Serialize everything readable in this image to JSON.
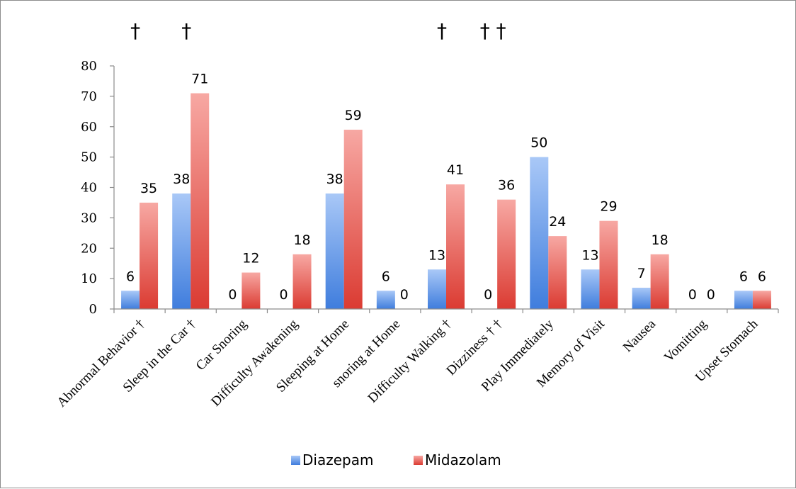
{
  "chart_data": {
    "type": "bar",
    "categories": [
      "Abnormal Behavior †",
      "Sleep in the Car †",
      "Car Snoring",
      "Difficulty Awakening",
      "Sleeping at Home",
      "snoring at Home",
      "Difficulty Walking †",
      "Dizziness † †",
      "Play Immediately",
      "Memory of Visit",
      "Nausea",
      "Vomitting",
      "Upset Stomach"
    ],
    "series": [
      {
        "name": "Diazepam",
        "values": [
          6,
          38,
          0,
          0,
          38,
          6,
          13,
          0,
          50,
          13,
          7,
          0,
          6
        ],
        "color": "#5b8ee6"
      },
      {
        "name": "Midazolam",
        "values": [
          35,
          71,
          12,
          18,
          59,
          0,
          41,
          36,
          24,
          29,
          18,
          0,
          6
        ],
        "color": "#e8524a"
      }
    ],
    "significance_marks": [
      "†",
      "†",
      "",
      "",
      "",
      "",
      "†",
      "† †",
      "",
      "",
      "",
      "",
      ""
    ],
    "ylim": [
      0,
      80
    ],
    "yticks": [
      0,
      10,
      20,
      30,
      40,
      50,
      60,
      70,
      80
    ],
    "title": "",
    "xlabel": "",
    "ylabel": "",
    "grid": false,
    "legend_position": "bottom"
  }
}
